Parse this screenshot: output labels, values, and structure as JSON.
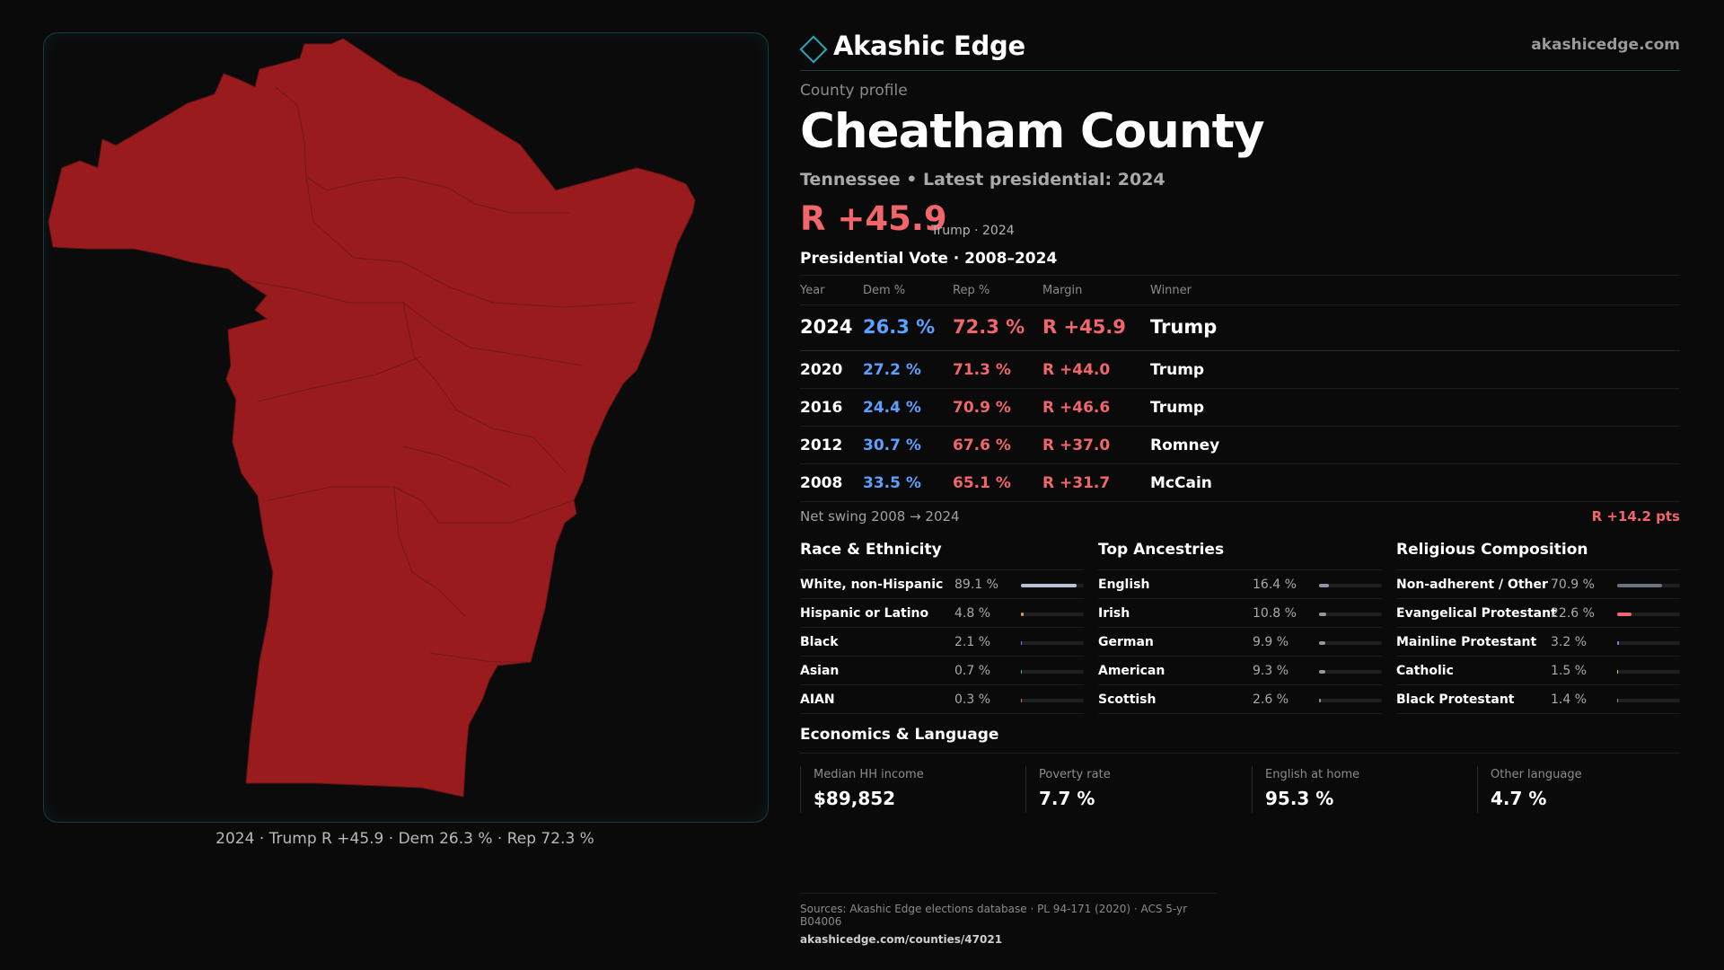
{
  "brand": {
    "name": "Akashic Edge",
    "url": "akashicedge.com"
  },
  "profile": {
    "label": "County profile",
    "title": "Cheatham County",
    "subtitle": "Tennessee • Latest presidential: 2024",
    "margin": "R +45.9",
    "margin_note": "Trump · 2024"
  },
  "map": {
    "caption": "2024 · Trump R +45.9 · Dem 26.3 % · Rep 72.3 %",
    "fill_color": "#9a1b1e"
  },
  "vote": {
    "title": "Presidential Vote · 2008–2024",
    "headers": [
      "Year",
      "Dem %",
      "Rep %",
      "Margin",
      "Winner"
    ],
    "rows": [
      {
        "year": "2024",
        "dem": "26.3 %",
        "rep": "72.3 %",
        "margin": "R +45.9",
        "winner": "Trump"
      },
      {
        "year": "2020",
        "dem": "27.2 %",
        "rep": "71.3 %",
        "margin": "R +44.0",
        "winner": "Trump"
      },
      {
        "year": "2016",
        "dem": "24.4 %",
        "rep": "70.9 %",
        "margin": "R +46.6",
        "winner": "Trump"
      },
      {
        "year": "2012",
        "dem": "30.7 %",
        "rep": "67.6 %",
        "margin": "R +37.0",
        "winner": "Romney"
      },
      {
        "year": "2008",
        "dem": "33.5 %",
        "rep": "65.1 %",
        "margin": "R +31.7",
        "winner": "McCain"
      }
    ],
    "swing_label": "Net swing 2008 → 2024",
    "swing_value": "R +14.2 pts"
  },
  "race": {
    "title": "Race & Ethnicity",
    "items": [
      {
        "name": "White, non-Hispanic",
        "pct": "89.1 %",
        "value": 89.1,
        "color": "#b9c2d6"
      },
      {
        "name": "Hispanic or Latino",
        "pct": "4.8 %",
        "value": 4.8,
        "color": "#e0a13a"
      },
      {
        "name": "Black",
        "pct": "2.1 %",
        "value": 2.1,
        "color": "#6b8cff"
      },
      {
        "name": "Asian",
        "pct": "0.7 %",
        "value": 0.7,
        "color": "#3fbfa6"
      },
      {
        "name": "AIAN",
        "pct": "0.3 %",
        "value": 0.3,
        "color": "#e07a3a"
      }
    ]
  },
  "ancestry": {
    "title": "Top Ancestries",
    "items": [
      {
        "name": "English",
        "pct": "16.4 %",
        "value": 16.4,
        "color": "#8f96a6"
      },
      {
        "name": "Irish",
        "pct": "10.8 %",
        "value": 10.8,
        "color": "#8f96a6"
      },
      {
        "name": "German",
        "pct": "9.9 %",
        "value": 9.9,
        "color": "#8f96a6"
      },
      {
        "name": "American",
        "pct": "9.3 %",
        "value": 9.3,
        "color": "#8f96a6"
      },
      {
        "name": "Scottish",
        "pct": "2.6 %",
        "value": 2.6,
        "color": "#8f96a6"
      }
    ]
  },
  "religion": {
    "title": "Religious Composition",
    "items": [
      {
        "name": "Non-adherent / Other",
        "pct": "70.9 %",
        "value": 70.9,
        "color": "#6d7280"
      },
      {
        "name": "Evangelical Protestant",
        "pct": "22.6 %",
        "value": 22.6,
        "color": "#f0666a"
      },
      {
        "name": "Mainline Protestant",
        "pct": "3.2 %",
        "value": 3.2,
        "color": "#6b8cff"
      },
      {
        "name": "Catholic",
        "pct": "1.5 %",
        "value": 1.5,
        "color": "#e0c23a"
      },
      {
        "name": "Black Protestant",
        "pct": "1.4 %",
        "value": 1.4,
        "color": "#e07a3a"
      }
    ]
  },
  "economics": {
    "title": "Economics & Language",
    "items": [
      {
        "label": "Median HH income",
        "value": "$89,852"
      },
      {
        "label": "Poverty rate",
        "value": "7.7 %"
      },
      {
        "label": "English at home",
        "value": "95.3 %"
      },
      {
        "label": "Other language",
        "value": "4.7 %"
      }
    ]
  },
  "sources": {
    "line1": "Sources: Akashic Edge elections database · PL 94-171 (2020) · ACS 5-yr B04006",
    "line2": "akashicedge.com/counties/47021"
  }
}
